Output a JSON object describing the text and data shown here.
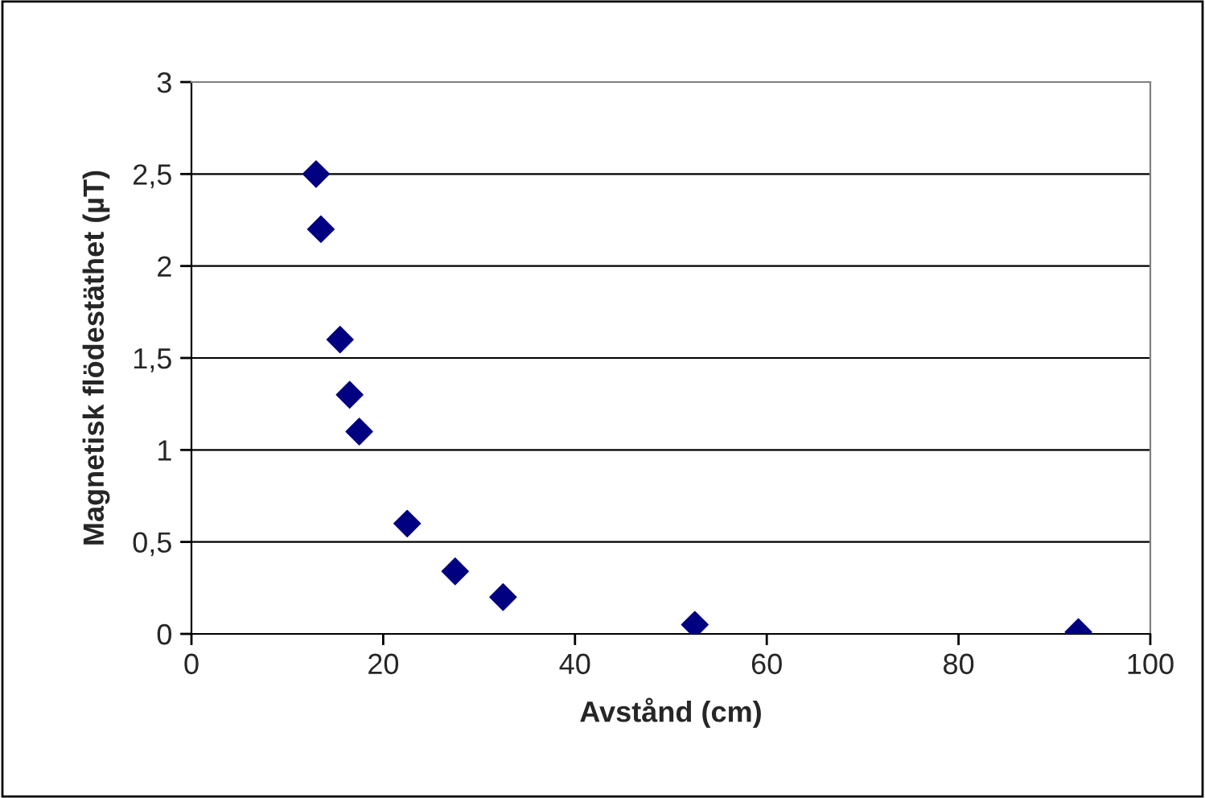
{
  "chart_data": {
    "type": "scatter",
    "xlabel": "Avstånd (cm)",
    "ylabel": "Magnetisk flödestäthet (µT)",
    "x": [
      13,
      13.5,
      15.5,
      16.5,
      17.5,
      22.5,
      27.5,
      32.5,
      52.5,
      92.5
    ],
    "series": [
      {
        "color": "#000080",
        "values": [
          2.5,
          2.2,
          1.6,
          1.3,
          1.1,
          0.6,
          0.34,
          0.2,
          0.05,
          0.01
        ]
      }
    ],
    "xlim": [
      0,
      100
    ],
    "xticks": [
      0,
      20,
      40,
      60,
      80,
      100
    ],
    "ylim": [
      0,
      3
    ],
    "yticks": [
      {
        "value": 0,
        "label": "0"
      },
      {
        "value": 0.5,
        "label": "0,5"
      },
      {
        "value": 1,
        "label": "1"
      },
      {
        "value": 1.5,
        "label": "1,5"
      },
      {
        "value": 2,
        "label": "2"
      },
      {
        "value": 2.5,
        "label": "2,5"
      },
      {
        "value": 3,
        "label": "3"
      }
    ],
    "grid": "y",
    "marker": "diamond",
    "legend": false
  }
}
